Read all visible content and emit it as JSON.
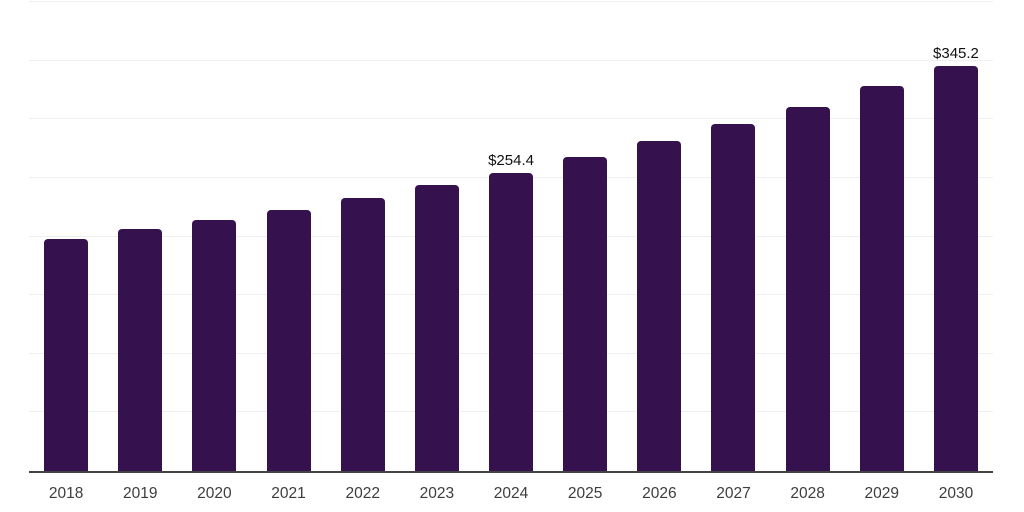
{
  "chart_data": {
    "type": "bar",
    "title": "",
    "xlabel": "",
    "ylabel": "",
    "categories": [
      "2018",
      "2019",
      "2020",
      "2021",
      "2022",
      "2023",
      "2024",
      "2025",
      "2026",
      "2027",
      "2028",
      "2029",
      "2030"
    ],
    "values": [
      198.3,
      206.4,
      214.4,
      222.9,
      233.0,
      243.9,
      254.4,
      267.5,
      281.4,
      295.8,
      310.4,
      328.2,
      345.2
    ],
    "value_labels": {
      "2024": "$254.4",
      "2030": "$345.2"
    },
    "ylim": [
      0,
      400
    ],
    "grid_step": 50,
    "grid": "horizontal-only",
    "legend_position": "none",
    "y_axis_tick_labels_visible": false,
    "colors": {
      "bar": "#35124E",
      "gridline": "#efefef",
      "axis_line": "#444444",
      "x_tick_label": "#3d3d3d",
      "data_label": "#111111",
      "background": "#ffffff"
    }
  }
}
